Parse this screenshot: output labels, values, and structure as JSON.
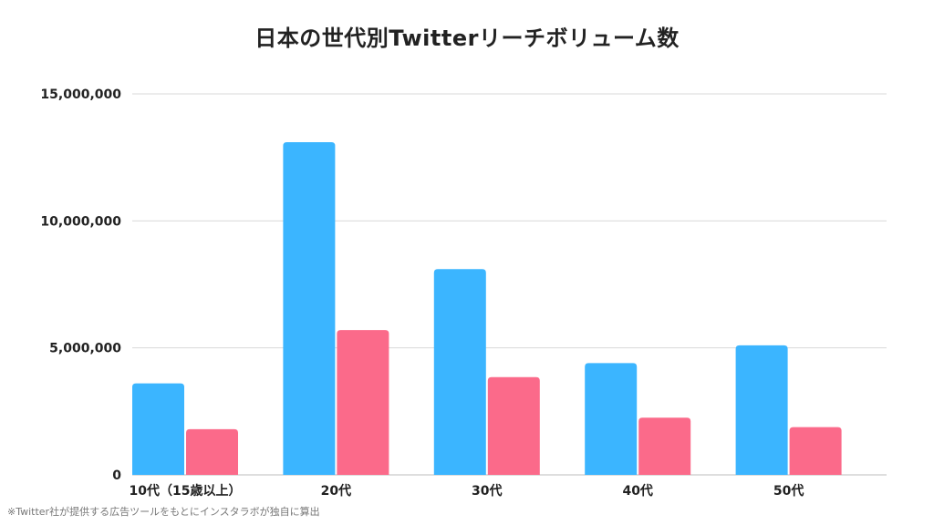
{
  "chart_data": {
    "type": "bar",
    "title": "日本の世代別Twitterリーチボリューム数",
    "categories": [
      "10代（15歳以上）",
      "20代",
      "30代",
      "40代",
      "50代"
    ],
    "series": [
      {
        "values": [
          3600000,
          13100000,
          8100000,
          4400000,
          5100000
        ]
      },
      {
        "values": [
          1800000,
          5700000,
          3850000,
          2250000,
          1880000
        ]
      }
    ],
    "series_colors": [
      "#3bb5ff",
      "#fb6a8a"
    ],
    "ylim": [
      0,
      15000000
    ],
    "yticks": [
      0,
      5000000,
      10000000,
      15000000
    ],
    "ytick_labels": [
      "0",
      "5,000,000",
      "10,000,000",
      "15,000,000"
    ],
    "grid": true,
    "xlabel": "",
    "ylabel": ""
  },
  "footnote": "※Twitter社が提供する広告ツールをもとにインスタラボが独自に算出"
}
